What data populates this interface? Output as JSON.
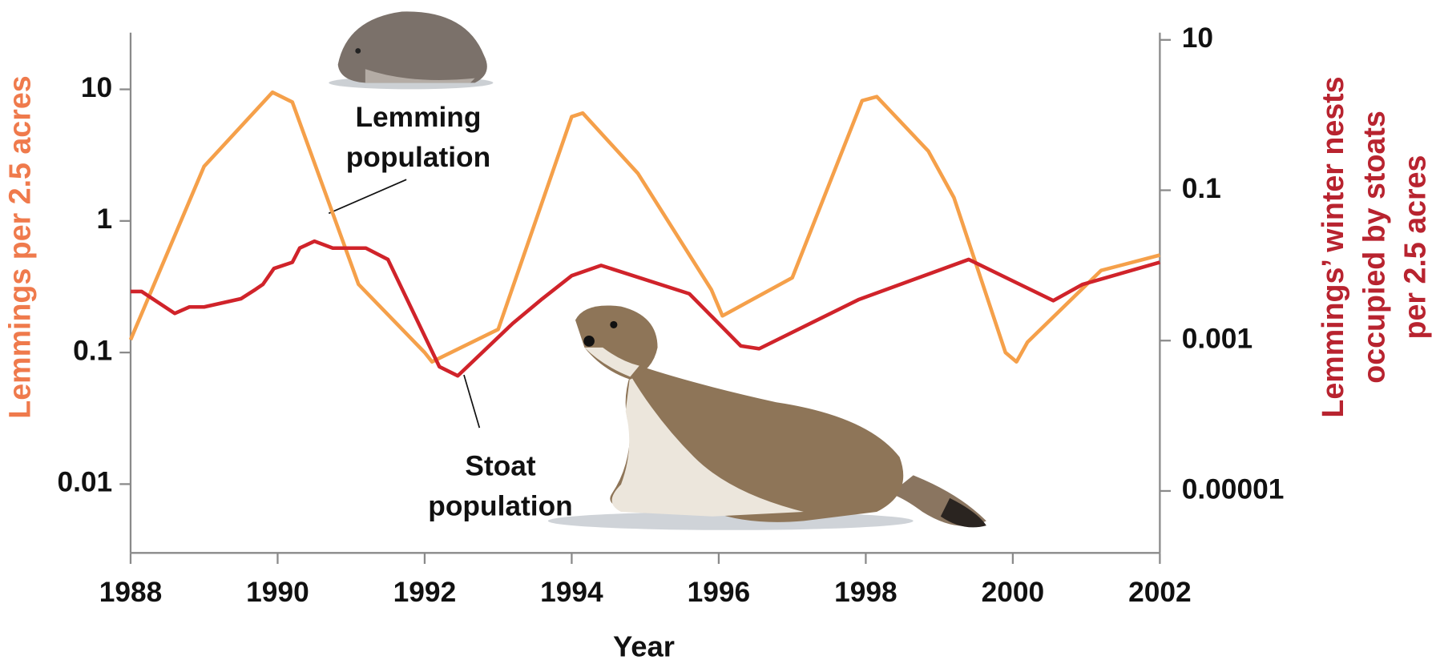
{
  "chart_data": {
    "type": "line",
    "xlabel": "Year",
    "ylabel": "Lemmings per 2.5 acres",
    "y2label": [
      "Lemmings’ winter nests",
      "occupied by stoats",
      "per 2.5 acres"
    ],
    "ylabel_color": "#ef7a4c",
    "y2label_color": "#b8232f",
    "log_scale": true,
    "xlim": [
      1988,
      2002
    ],
    "xticks": [
      1988,
      1990,
      1992,
      1994,
      1996,
      1998,
      2000,
      2002
    ],
    "ylim": [
      0.003,
      27
    ],
    "yticks": [
      10,
      1,
      0.1,
      0.01
    ],
    "y2lim": [
      1.5e-06,
      12.5
    ],
    "y2ticks": [
      10,
      0.1,
      0.001,
      {
        "value": 1e-05,
        "label": "0.00001"
      }
    ],
    "series": [
      {
        "name": "Lemming population",
        "color": "#f5a04a",
        "x": [
          1988,
          1989,
          1989.93,
          1990.2,
          1991.1,
          1992,
          1992.1,
          1993,
          1994,
          1994.15,
          1994.9,
          1995.9,
          1996.05,
          1997,
          1997.95,
          1998.15,
          1998.85,
          1999.2,
          1999.9,
          2000.05,
          2000.2,
          2001.2,
          2002
        ],
        "values": [
          0.125,
          2.6,
          9.5,
          8,
          0.33,
          0.1,
          0.085,
          0.15,
          6.2,
          6.6,
          2.3,
          0.3,
          0.19,
          0.37,
          8.2,
          8.8,
          3.4,
          1.5,
          0.1,
          0.085,
          0.12,
          0.42,
          0.55
        ]
      },
      {
        "name": "Stoat population",
        "color": "#d0232a",
        "axis": "y2",
        "x": [
          1988,
          1988.15,
          1988.6,
          1988.8,
          1989,
          1989.5,
          1989.7,
          1989.8,
          1989.95,
          1990.2,
          1990.3,
          1990.5,
          1990.75,
          1991.2,
          1991.5,
          1992.2,
          1992.45,
          1993.2,
          1993.6,
          1994,
          1994.4,
          1995.6,
          1996.3,
          1996.55,
          1997.9,
          1999.4,
          2000.55,
          2000.95,
          2002
        ],
        "values": [
          0.0045,
          0.0045,
          0.0023,
          0.0028,
          0.0028,
          0.0036,
          0.0048,
          0.0056,
          0.0091,
          0.011,
          0.017,
          0.021,
          0.017,
          0.017,
          0.012,
          0.00045,
          0.00034,
          0.0017,
          0.0036,
          0.0073,
          0.01,
          0.0042,
          0.00085,
          0.00078,
          0.0035,
          0.012,
          0.0034,
          0.0056,
          0.011
        ]
      }
    ]
  }
}
